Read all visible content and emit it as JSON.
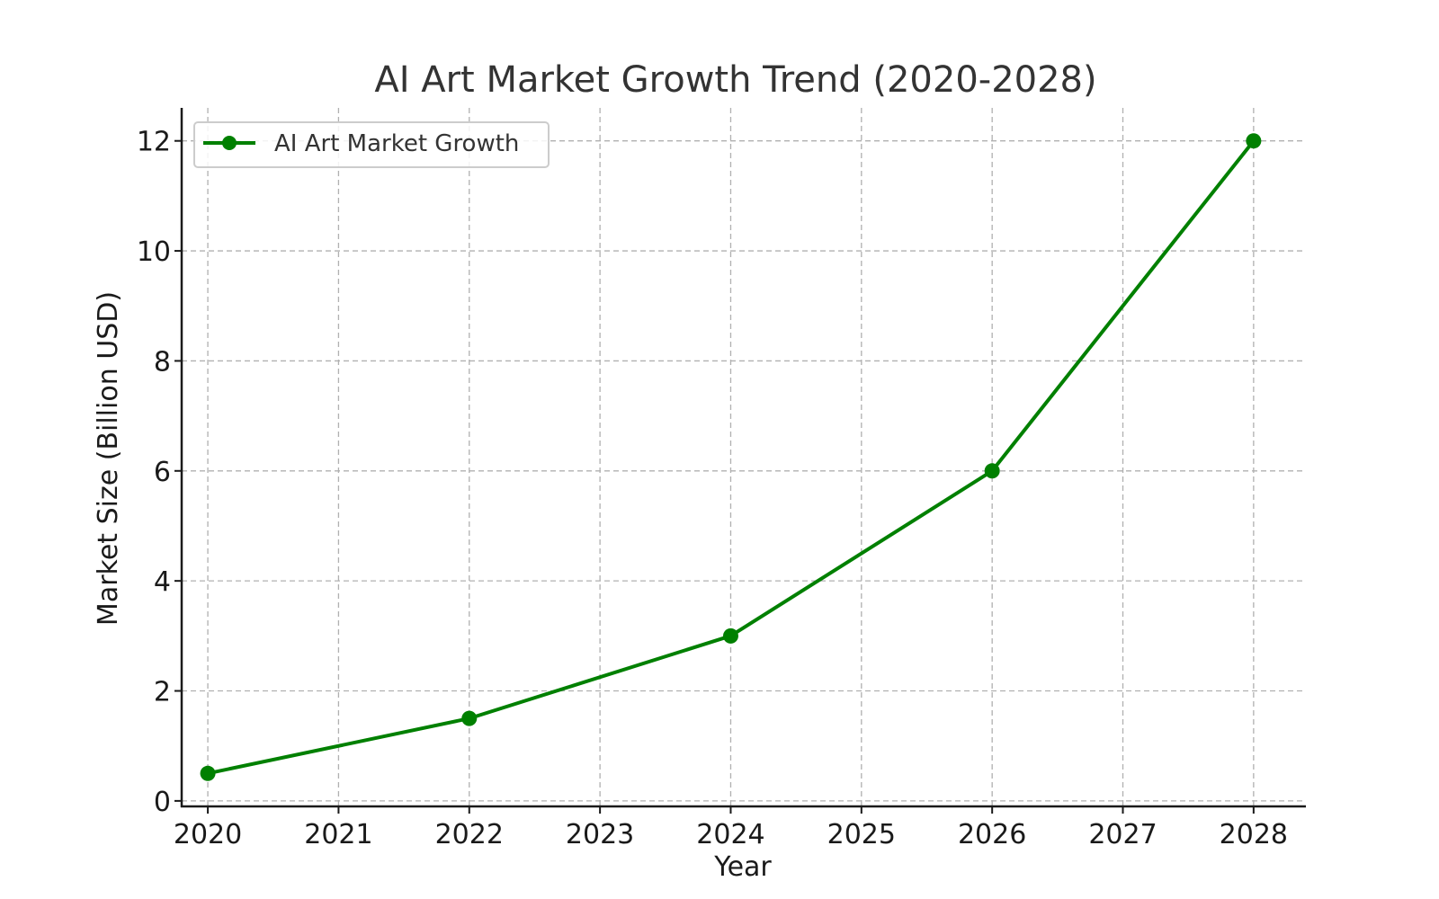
{
  "chart_data": {
    "type": "line",
    "title": "AI Art Market Growth Trend (2020-2028)",
    "xlabel": "Year",
    "ylabel": "Market Size (Billion USD)",
    "x": [
      2020,
      2022,
      2024,
      2026,
      2028
    ],
    "series": [
      {
        "name": "AI Art Market Growth",
        "values": [
          0.5,
          1.5,
          3,
          6,
          12
        ],
        "color": "#008000",
        "marker": "circle"
      }
    ],
    "xticks": [
      "2020",
      "2021",
      "2022",
      "2023",
      "2024",
      "2025",
      "2026",
      "2027",
      "2028"
    ],
    "yticks": [
      "0",
      "2",
      "4",
      "6",
      "8",
      "10",
      "12"
    ],
    "xlim": [
      2019.8,
      2028.4
    ],
    "ylim": [
      -0.1,
      12.6
    ],
    "grid": true,
    "legend": "top-left"
  }
}
